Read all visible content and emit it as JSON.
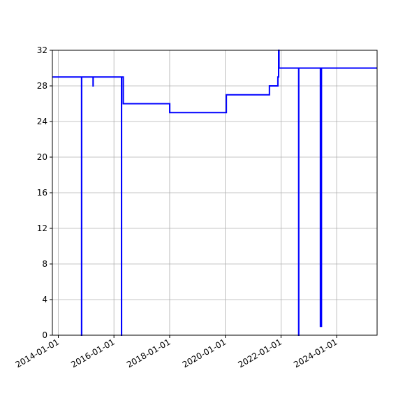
{
  "chart_data": {
    "type": "line",
    "title": "",
    "xlabel": "",
    "ylabel": "",
    "x_axis_type": "date",
    "xlim": [
      "2013-10-15",
      "2025-06-15"
    ],
    "ylim": [
      0,
      32
    ],
    "grid": true,
    "y_ticks": [
      0,
      4,
      8,
      12,
      16,
      20,
      24,
      28,
      32
    ],
    "y_tick_labels": [
      "0",
      "4",
      "8",
      "12",
      "16",
      "20",
      "24",
      "28",
      "32"
    ],
    "x_ticks": [
      "2014-01-01",
      "2016-01-01",
      "2018-01-01",
      "2020-01-01",
      "2022-01-01",
      "2024-01-01"
    ],
    "x_tick_labels": [
      "2014-01-01",
      "2016-01-01",
      "2018-01-01",
      "2020-01-01",
      "2022-01-01",
      "2024-01-01"
    ],
    "series": [
      {
        "color": "#0000ff",
        "step": true,
        "points": [
          [
            "2013-10-15",
            29
          ],
          [
            "2014-11-01",
            29
          ],
          [
            "2014-11-02",
            0
          ],
          [
            "2014-11-03",
            29
          ],
          [
            "2015-04-01",
            29
          ],
          [
            "2015-04-02",
            28
          ],
          [
            "2015-04-03",
            29
          ],
          [
            "2016-04-08",
            29
          ],
          [
            "2016-04-09",
            0
          ],
          [
            "2016-04-10",
            29
          ],
          [
            "2016-05-01",
            29
          ],
          [
            "2016-05-02",
            26
          ],
          [
            "2018-01-01",
            26
          ],
          [
            "2018-01-02",
            25
          ],
          [
            "2020-01-01",
            25
          ],
          [
            "2020-01-15",
            27
          ],
          [
            "2021-08-01",
            27
          ],
          [
            "2021-08-02",
            28
          ],
          [
            "2021-11-20",
            28
          ],
          [
            "2021-11-21",
            29
          ],
          [
            "2021-11-30",
            29
          ],
          [
            "2021-12-01",
            32
          ],
          [
            "2021-12-05",
            32
          ],
          [
            "2021-12-06",
            30
          ],
          [
            "2022-08-20",
            30
          ],
          [
            "2022-08-21",
            0
          ],
          [
            "2022-08-22",
            30
          ],
          [
            "2023-06-01",
            30
          ],
          [
            "2023-06-02",
            1
          ],
          [
            "2023-06-15",
            1
          ],
          [
            "2023-06-16",
            30
          ],
          [
            "2025-06-15",
            30
          ]
        ]
      }
    ]
  }
}
